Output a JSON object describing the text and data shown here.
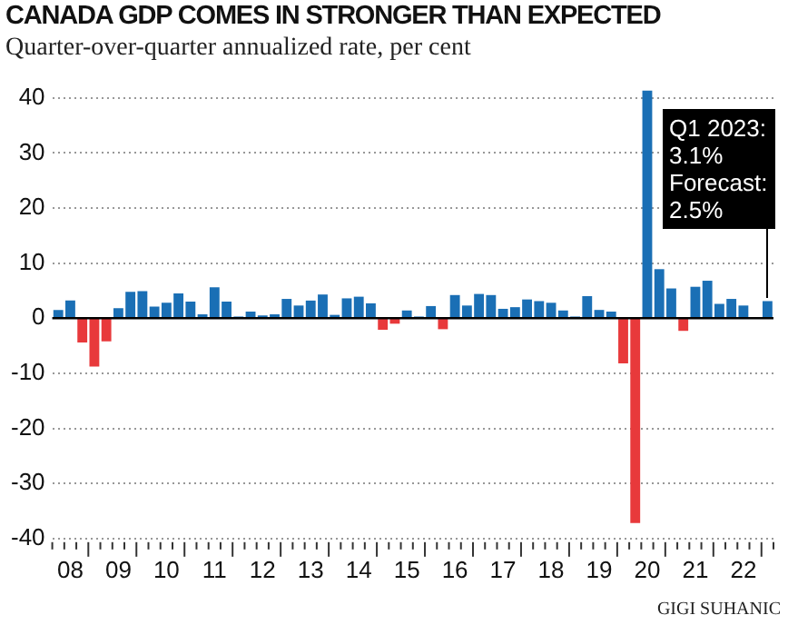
{
  "chart_data": {
    "type": "bar",
    "title": "CANADA GDP COMES IN STRONGER THAN EXPECTED",
    "subtitle": "Quarter-over-quarter annualized rate, per cent",
    "categories": [
      null,
      "08",
      null,
      null,
      null,
      "09",
      null,
      null,
      null,
      "10",
      null,
      null,
      null,
      "11",
      null,
      null,
      null,
      "12",
      null,
      null,
      null,
      "13",
      null,
      null,
      null,
      "14",
      null,
      null,
      null,
      "15",
      null,
      null,
      null,
      "16",
      null,
      null,
      null,
      "17",
      null,
      null,
      null,
      "18",
      null,
      null,
      null,
      "19",
      null,
      null,
      null,
      "20",
      null,
      null,
      null,
      "21",
      null,
      null,
      null,
      "22",
      null,
      null
    ],
    "values": [
      1.5,
      3.2,
      -4.4,
      -8.8,
      -4.2,
      1.8,
      4.8,
      4.9,
      2.1,
      2.8,
      4.5,
      3.0,
      0.7,
      5.6,
      3.0,
      0.3,
      1.2,
      0.5,
      0.7,
      3.5,
      2.3,
      3.2,
      4.3,
      0.6,
      3.6,
      3.9,
      2.7,
      -2.1,
      -1.0,
      1.4,
      0.3,
      2.2,
      -2.0,
      4.2,
      2.3,
      4.4,
      4.2,
      1.7,
      2.0,
      3.4,
      3.1,
      2.8,
      1.4,
      0.3,
      4.0,
      1.5,
      1.2,
      -8.2,
      -37.2,
      41.3,
      8.9,
      5.4,
      -2.3,
      5.7,
      6.8,
      2.6,
      3.5,
      2.3,
      0,
      3.1
    ],
    "colors": [
      "#1a6fb5",
      "#1a6fb5",
      "#e8393b",
      "#e8393b",
      "#e8393b",
      "#1a6fb5",
      "#1a6fb5",
      "#1a6fb5",
      "#1a6fb5",
      "#1a6fb5",
      "#1a6fb5",
      "#1a6fb5",
      "#1a6fb5",
      "#1a6fb5",
      "#1a6fb5",
      "#1a6fb5",
      "#1a6fb5",
      "#1a6fb5",
      "#1a6fb5",
      "#1a6fb5",
      "#1a6fb5",
      "#1a6fb5",
      "#1a6fb5",
      "#1a6fb5",
      "#1a6fb5",
      "#1a6fb5",
      "#1a6fb5",
      "#e8393b",
      "#e8393b",
      "#1a6fb5",
      "#1a6fb5",
      "#1a6fb5",
      "#e8393b",
      "#1a6fb5",
      "#1a6fb5",
      "#1a6fb5",
      "#1a6fb5",
      "#1a6fb5",
      "#1a6fb5",
      "#1a6fb5",
      "#1a6fb5",
      "#1a6fb5",
      "#1a6fb5",
      "#1a6fb5",
      "#1a6fb5",
      "#1a6fb5",
      "#1a6fb5",
      "#e8393b",
      "#e8393b",
      "#1a6fb5",
      "#1a6fb5",
      "#1a6fb5",
      "#e8393b",
      "#1a6fb5",
      "#1a6fb5",
      "#1a6fb5",
      "#1a6fb5",
      "#1a6fb5",
      "#1a6fb5",
      "#1a6fb5"
    ],
    "ylim": [
      -40,
      42
    ],
    "yticks": [
      -40,
      -30,
      -20,
      -10,
      0,
      10,
      20,
      30,
      40
    ],
    "grid": "y",
    "legend": false,
    "annotations": [
      "Q1 2023:\n3.1%\nForecast:\n2.5%",
      "GIGI SUHANIC"
    ]
  }
}
